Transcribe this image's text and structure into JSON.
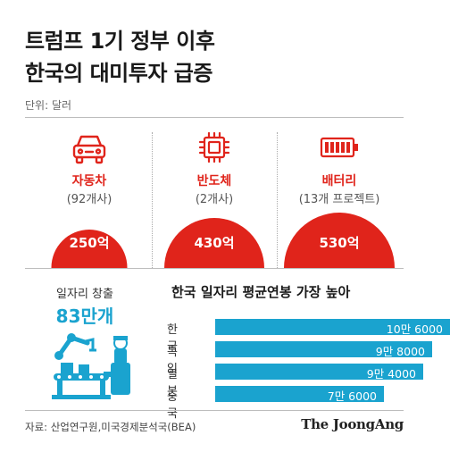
{
  "title_line1": "트럼프 1기 정부 이후",
  "title_line2": "한국의 대미투자 급증",
  "unit": "단위: 달러",
  "colors": {
    "accent_red": "#e0241b",
    "accent_blue": "#1aa3cf"
  },
  "chart_data": [
    {
      "type": "bar",
      "title": "",
      "categories": [
        "자동차",
        "반도체",
        "배터리"
      ],
      "sublabels": [
        "(92개사)",
        "(2개사)",
        "(13개 프로젝트)"
      ],
      "icons": [
        "car-icon",
        "chip-icon",
        "battery-icon"
      ],
      "values": [
        250,
        430,
        530
      ],
      "value_labels": [
        "250억",
        "430억",
        "530억"
      ],
      "unit": "억 달러"
    },
    {
      "type": "bar",
      "title": "한국 일자리 평균연봉 가장 높아",
      "categories": [
        "한국",
        "독일",
        "일본",
        "중국"
      ],
      "values": [
        106000,
        98000,
        94000,
        76000
      ],
      "value_labels": [
        "10만 6000",
        "9만 8000",
        "9만 4000",
        "7만 6000"
      ],
      "orientation": "horizontal"
    }
  ],
  "jobs": {
    "label": "일자리 창출",
    "value": "83만개"
  },
  "source": "자료: 산업연구원,미국경제분석국(BEA)",
  "logo": "The JoongAng"
}
